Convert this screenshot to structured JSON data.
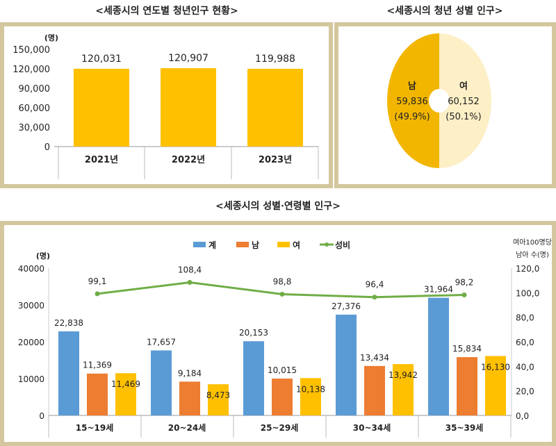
{
  "chart_data": [
    {
      "type": "bar",
      "title": "<세종시의 연도별 청년인구 현황>",
      "ylabel": "(명)",
      "categories": [
        "2021년",
        "2022년",
        "2023년"
      ],
      "values": [
        120031,
        120907,
        119988
      ],
      "value_labels": [
        "120,031",
        "120,907",
        "119,988"
      ],
      "ylim": [
        0,
        150000
      ],
      "yticks": [
        "0",
        "30,000",
        "60,000",
        "90,000",
        "120,000",
        "150,000"
      ],
      "color": "#ffc000"
    },
    {
      "type": "pie",
      "title": "<세종시의 청년 성별 인구>",
      "slices": [
        {
          "name": "남",
          "value": 59836,
          "label": "59,836",
          "pct": "(49.9%)",
          "color": "#f2b600"
        },
        {
          "name": "여",
          "value": 60152,
          "label": "60,152",
          "pct": "(50.1%)",
          "color": "#fdefc6"
        }
      ]
    },
    {
      "type": "bar",
      "title": "<세종시의 성별·연령별 인구>",
      "ylabel": "(명)",
      "y2label": [
        "여아100명당",
        "남아 수(명)"
      ],
      "categories": [
        "15~19세",
        "20~24세",
        "25~29세",
        "30~34세",
        "35~39세"
      ],
      "ylim": [
        0,
        40000
      ],
      "yticks": [
        "0",
        "10000",
        "20000",
        "30000",
        "40000"
      ],
      "y2lim": [
        0,
        120
      ],
      "y2ticks": [
        "0,0",
        "20,0",
        "40,0",
        "60,0",
        "80,0",
        "100,0",
        "120,0"
      ],
      "series": [
        {
          "name": "계",
          "color": "#5b9bd5",
          "values": [
            22838,
            17657,
            20153,
            27376,
            31964
          ],
          "labels": [
            "22,838",
            "17,657",
            "20,153",
            "27,376",
            "31,964"
          ]
        },
        {
          "name": "남",
          "color": "#ed7d31",
          "values": [
            11369,
            9184,
            10015,
            13434,
            15834
          ],
          "labels": [
            "11,369",
            "9,184",
            "10,015",
            "13,434",
            "15,834"
          ]
        },
        {
          "name": "여",
          "color": "#ffc000",
          "values": [
            11469,
            8473,
            10138,
            13942,
            16130
          ],
          "labels": [
            "11,469",
            "8,473",
            "10,138",
            "13,942",
            "16,130"
          ]
        },
        {
          "name": "성비",
          "type": "line",
          "axis": "right",
          "color": "#70ad47",
          "values": [
            99.1,
            108.4,
            98.8,
            96.4,
            98.2
          ],
          "labels": [
            "99.1",
            "108.4",
            "98.8",
            "96.4",
            "98.2"
          ]
        }
      ]
    }
  ]
}
